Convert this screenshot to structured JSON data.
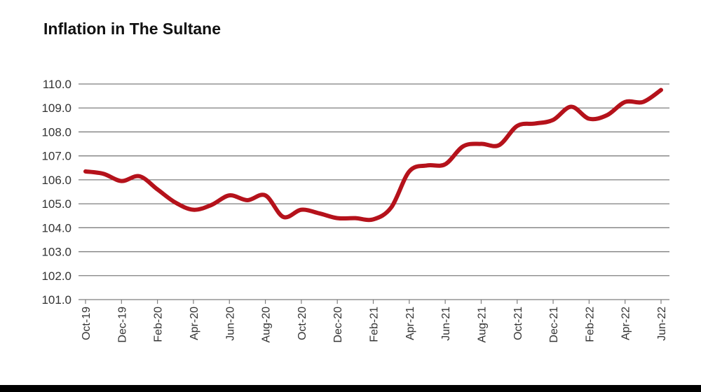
{
  "chart_data": {
    "type": "line",
    "title": "Inflation in The Sultane",
    "xlabel": "",
    "ylabel": "",
    "ylim": [
      101.0,
      110.0
    ],
    "yticks": [
      "101.0",
      "102.0",
      "103.0",
      "104.0",
      "105.0",
      "106.0",
      "107.0",
      "108.0",
      "109.0",
      "110.0"
    ],
    "grid": true,
    "legend": "none",
    "x_tick_labels": [
      "Oct-19",
      "Dec-19",
      "Feb-20",
      "Apr-20",
      "Jun-20",
      "Aug-20",
      "Oct-20",
      "Dec-20",
      "Feb-21",
      "Apr-21",
      "Jun-21",
      "Aug-21",
      "Oct-21",
      "Dec-21",
      "Feb-22",
      "Apr-22",
      "Jun-22"
    ],
    "categories": [
      "Oct-19",
      "Nov-19",
      "Dec-19",
      "Jan-20",
      "Feb-20",
      "Mar-20",
      "Apr-20",
      "May-20",
      "Jun-20",
      "Jul-20",
      "Aug-20",
      "Sep-20",
      "Oct-20",
      "Nov-20",
      "Dec-20",
      "Jan-21",
      "Feb-21",
      "Mar-21",
      "Apr-21",
      "May-21",
      "Jun-21",
      "Jul-21",
      "Aug-21",
      "Sep-21",
      "Oct-21",
      "Nov-21",
      "Dec-21",
      "Jan-22",
      "Feb-22",
      "Mar-22",
      "Apr-22",
      "May-22",
      "Jun-22"
    ],
    "series": [
      {
        "color": "#b5121b",
        "values": [
          106.35,
          106.25,
          105.95,
          106.15,
          105.6,
          105.05,
          104.75,
          104.95,
          105.35,
          105.15,
          105.35,
          104.45,
          104.75,
          104.6,
          104.4,
          104.4,
          104.35,
          104.85,
          106.35,
          106.6,
          106.65,
          107.4,
          107.5,
          107.45,
          108.25,
          108.35,
          108.5,
          109.05,
          108.55,
          108.7,
          109.25,
          109.25,
          109.75
        ]
      }
    ],
    "colors": {
      "line": "#b5121b",
      "grid": "#7f7f7f",
      "axis": "#7f7f7f"
    }
  }
}
